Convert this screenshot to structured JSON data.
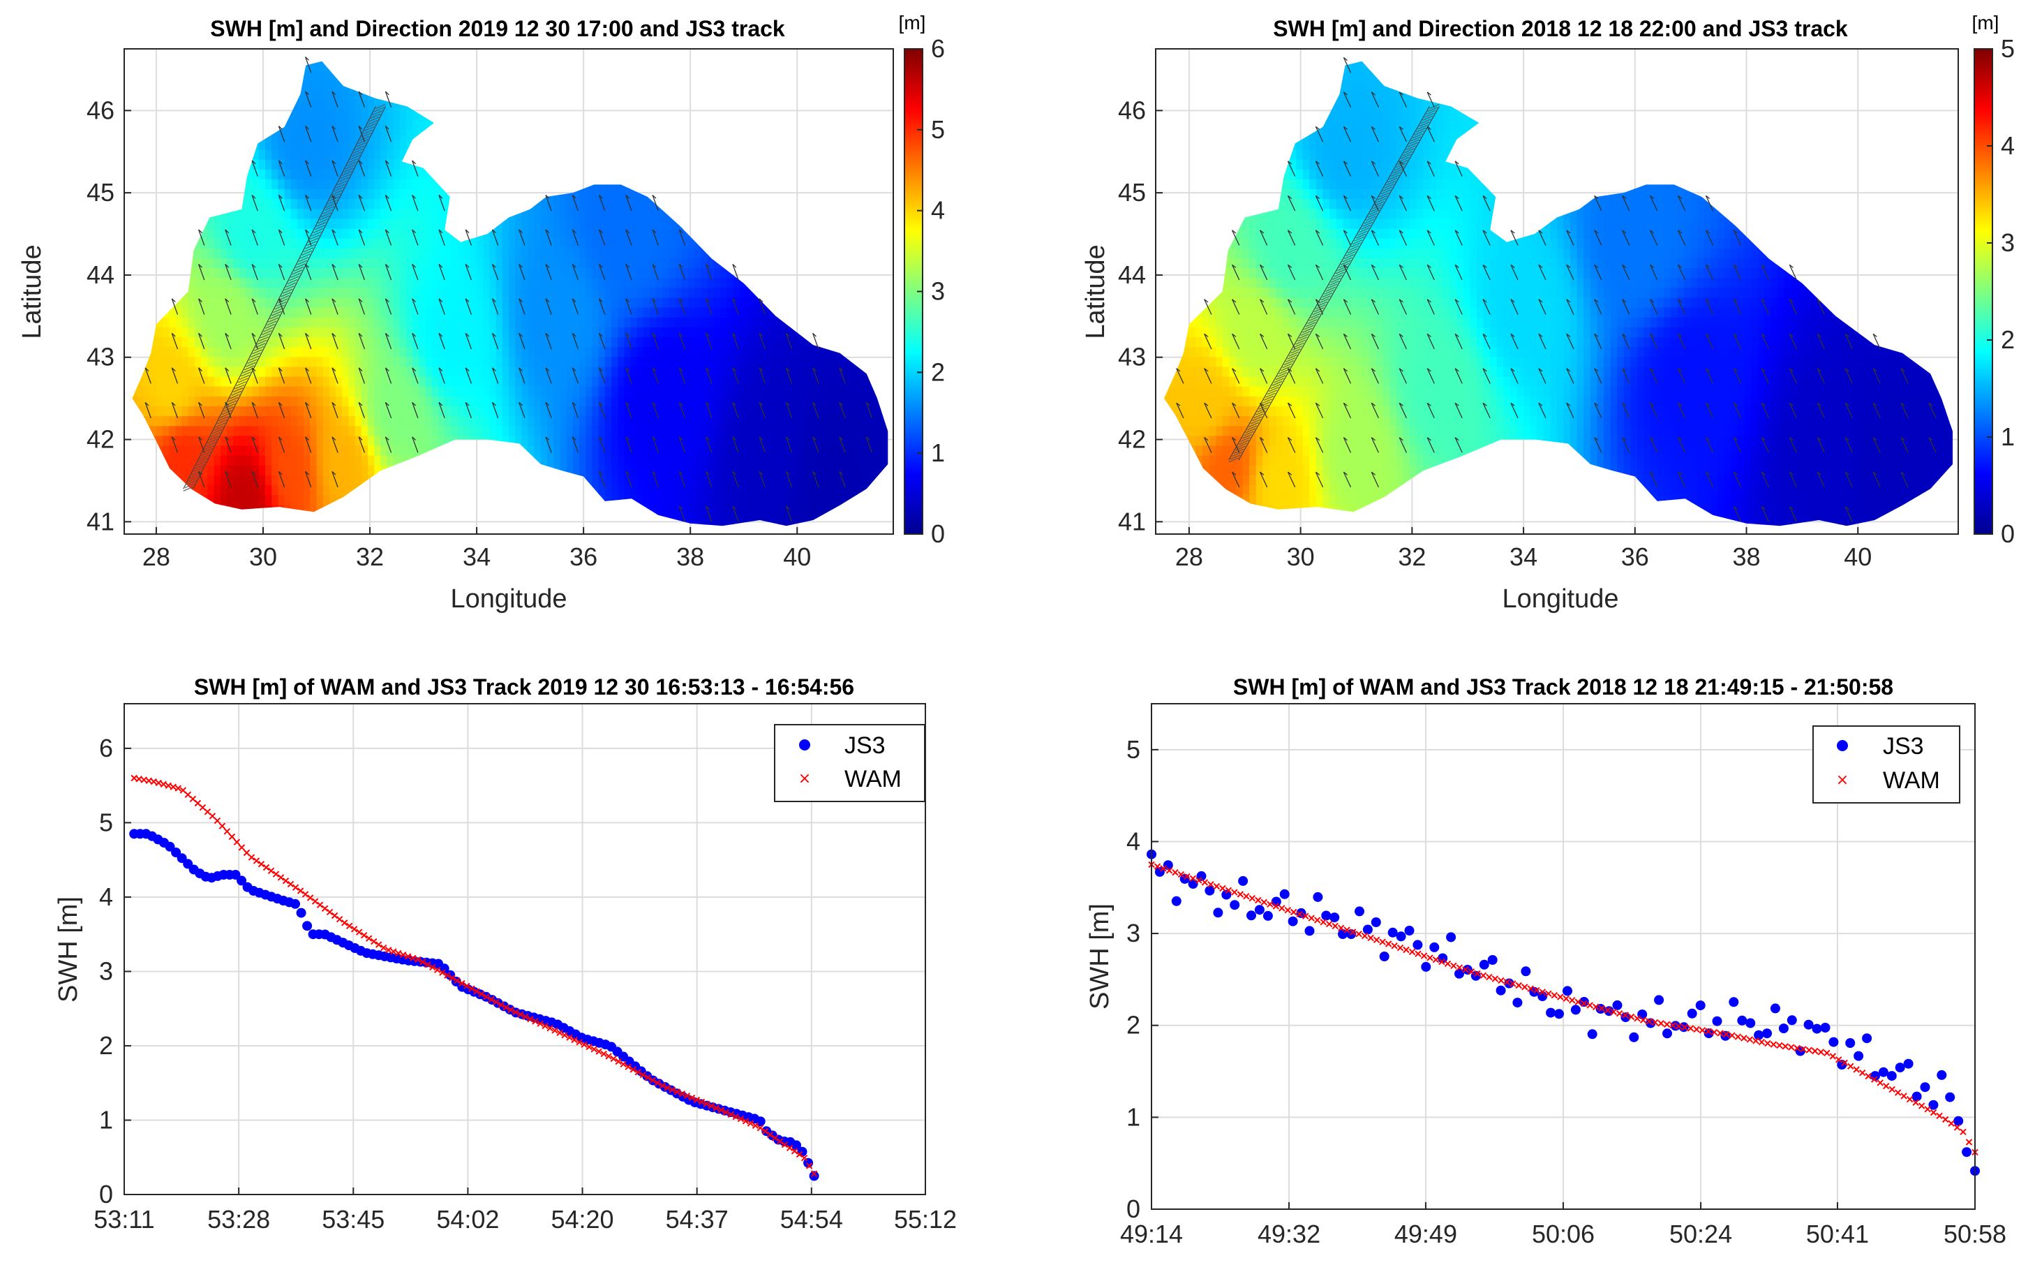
{
  "chart_data": [
    {
      "id": "map1",
      "type": "heatmap",
      "title": "SWH [m] and Direction  2019 12 30  17:00  and JS3 track",
      "xlabel": "Longitude",
      "ylabel": "Latitude",
      "xlim": [
        27.4,
        41.8
      ],
      "ylim": [
        40.85,
        46.75
      ],
      "xticks": [
        28,
        30,
        32,
        34,
        36,
        38,
        40
      ],
      "yticks": [
        41,
        42,
        43,
        44,
        45,
        46
      ],
      "colorbar": {
        "unit": "[m]",
        "min": 0,
        "max": 6,
        "ticks": [
          0,
          1,
          2,
          3,
          4,
          5,
          6
        ]
      },
      "swh_field": [
        {
          "lon": 29.7,
          "lat": 41.3,
          "value": 5.6
        },
        {
          "lon": 28.5,
          "lat": 41.8,
          "value": 5.0
        },
        {
          "lon": 30.5,
          "lat": 41.6,
          "value": 4.8
        },
        {
          "lon": 28.3,
          "lat": 42.6,
          "value": 4.0
        },
        {
          "lon": 31.5,
          "lat": 41.7,
          "value": 4.2
        },
        {
          "lon": 29.3,
          "lat": 43.5,
          "value": 3.2
        },
        {
          "lon": 32.5,
          "lat": 42.3,
          "value": 3.0
        },
        {
          "lon": 29.8,
          "lat": 44.5,
          "value": 2.4
        },
        {
          "lon": 33.5,
          "lat": 43.2,
          "value": 2.2
        },
        {
          "lon": 30.8,
          "lat": 45.6,
          "value": 1.6
        },
        {
          "lon": 35.5,
          "lat": 43.5,
          "value": 1.6
        },
        {
          "lon": 36.8,
          "lat": 44.5,
          "value": 1.4
        },
        {
          "lon": 37.5,
          "lat": 42.5,
          "value": 0.7
        },
        {
          "lon": 39.5,
          "lat": 41.8,
          "value": 0.4
        },
        {
          "lon": 40.5,
          "lat": 41.5,
          "value": 0.3
        }
      ],
      "track": {
        "start": [
          28.6,
          41.4
        ],
        "end": [
          32.2,
          46.05
        ]
      },
      "direction_deg_from_north": 200
    },
    {
      "id": "map2",
      "type": "heatmap",
      "title": "SWH [m] and Direction  2018 12 18  22:00  and JS3 track",
      "xlabel": "Longitude",
      "ylabel": "Latitude",
      "xlim": [
        27.4,
        41.8
      ],
      "ylim": [
        40.85,
        46.75
      ],
      "xticks": [
        28,
        30,
        32,
        34,
        36,
        38,
        40
      ],
      "yticks": [
        41,
        42,
        43,
        44,
        45,
        46
      ],
      "colorbar": {
        "unit": "[m]",
        "min": 0,
        "max": 5,
        "ticks": [
          0,
          1,
          2,
          3,
          4,
          5
        ]
      },
      "swh_field": [
        {
          "lon": 28.7,
          "lat": 41.7,
          "value": 3.9
        },
        {
          "lon": 28.3,
          "lat": 42.4,
          "value": 3.4
        },
        {
          "lon": 29.6,
          "lat": 41.5,
          "value": 3.3
        },
        {
          "lon": 29.2,
          "lat": 43.3,
          "value": 2.8
        },
        {
          "lon": 31.0,
          "lat": 41.8,
          "value": 2.7
        },
        {
          "lon": 29.8,
          "lat": 44.3,
          "value": 2.2
        },
        {
          "lon": 32.5,
          "lat": 42.6,
          "value": 2.2
        },
        {
          "lon": 30.8,
          "lat": 45.5,
          "value": 1.5
        },
        {
          "lon": 34.0,
          "lat": 43.6,
          "value": 1.7
        },
        {
          "lon": 36.0,
          "lat": 44.4,
          "value": 1.2
        },
        {
          "lon": 37.0,
          "lat": 42.7,
          "value": 0.7
        },
        {
          "lon": 39.5,
          "lat": 41.8,
          "value": 0.35
        },
        {
          "lon": 40.5,
          "lat": 41.6,
          "value": 0.3
        }
      ],
      "track": {
        "start": [
          28.8,
          41.75
        ],
        "end": [
          32.4,
          46.05
        ]
      },
      "direction_deg_from_north": 205
    },
    {
      "id": "line1",
      "type": "scatter",
      "title": "SWH [m] of WAM and JS3 Track 2019 12 30  16:53:13 - 16:54:56",
      "xlabel": "",
      "ylabel": "SWH [m]",
      "xlim": [
        0,
        121
      ],
      "ylim": [
        0,
        6.6
      ],
      "xticks": [
        0,
        17.3,
        34.6,
        51.9,
        69.2,
        86.5,
        103.8,
        121
      ],
      "xtick_labels": [
        "53:11",
        "53:28",
        "53:45",
        "54:02",
        "54:20",
        "54:37",
        "54:54",
        "55:12"
      ],
      "yticks": [
        0,
        1,
        2,
        3,
        4,
        5,
        6
      ],
      "legend": [
        "JS3",
        "WAM"
      ],
      "series": [
        {
          "name": "JS3",
          "x_range": [
            1.5,
            104.2
          ],
          "anchors": [
            [
              0,
              4.85
            ],
            [
              0.02,
              4.85
            ],
            [
              0.05,
              4.7
            ],
            [
              0.09,
              4.35
            ],
            [
              0.11,
              4.25
            ],
            [
              0.13,
              4.3
            ],
            [
              0.15,
              4.3
            ],
            [
              0.17,
              4.1
            ],
            [
              0.22,
              3.95
            ],
            [
              0.24,
              3.9
            ],
            [
              0.26,
              3.5
            ],
            [
              0.28,
              3.5
            ],
            [
              0.34,
              3.25
            ],
            [
              0.4,
              3.15
            ],
            [
              0.45,
              3.1
            ],
            [
              0.48,
              2.8
            ],
            [
              0.52,
              2.65
            ],
            [
              0.56,
              2.45
            ],
            [
              0.62,
              2.3
            ],
            [
              0.66,
              2.1
            ],
            [
              0.7,
              2.0
            ],
            [
              0.76,
              1.55
            ],
            [
              0.82,
              1.25
            ],
            [
              0.86,
              1.15
            ],
            [
              0.92,
              1.0
            ],
            [
              0.93,
              0.85
            ],
            [
              0.95,
              0.72
            ],
            [
              0.97,
              0.7
            ],
            [
              0.985,
              0.55
            ],
            [
              1.0,
              0.25
            ]
          ],
          "count": 115
        },
        {
          "name": "WAM",
          "x_range": [
            1.5,
            104.2
          ],
          "anchors": [
            [
              0,
              5.6
            ],
            [
              0.03,
              5.55
            ],
            [
              0.07,
              5.45
            ],
            [
              0.12,
              5.05
            ],
            [
              0.17,
              4.55
            ],
            [
              0.25,
              4.05
            ],
            [
              0.31,
              3.65
            ],
            [
              0.37,
              3.3
            ],
            [
              0.42,
              3.15
            ],
            [
              0.46,
              2.95
            ],
            [
              0.5,
              2.75
            ],
            [
              0.55,
              2.5
            ],
            [
              0.62,
              2.2
            ],
            [
              0.7,
              1.85
            ],
            [
              0.78,
              1.45
            ],
            [
              0.86,
              1.15
            ],
            [
              0.92,
              0.9
            ],
            [
              0.96,
              0.65
            ],
            [
              0.985,
              0.5
            ],
            [
              1.0,
              0.28
            ]
          ],
          "count": 140
        }
      ]
    },
    {
      "id": "line2",
      "type": "scatter",
      "title": "SWH [m] of WAM and JS3 Track 2018 12 18  21:49:15 - 21:50:58",
      "xlabel": "",
      "ylabel": "SWH [m]",
      "xlim": [
        0,
        103
      ],
      "ylim": [
        0,
        5.5
      ],
      "xticks": [
        0,
        17.2,
        34.3,
        51.5,
        68.7,
        85.8,
        103
      ],
      "xtick_labels": [
        "49:14",
        "49:32",
        "49:49",
        "50:06",
        "50:24",
        "50:41",
        "50:58"
      ],
      "yticks": [
        0,
        1,
        2,
        3,
        4,
        5
      ],
      "legend": [
        "JS3",
        "WAM"
      ],
      "series": [
        {
          "name": "JS3",
          "x_range": [
            0,
            103
          ],
          "anchors": [
            [
              0,
              3.7
            ],
            [
              0.1,
              3.35
            ],
            [
              0.2,
              3.2
            ],
            [
              0.3,
              2.95
            ],
            [
              0.4,
              2.6
            ],
            [
              0.5,
              2.2
            ],
            [
              0.6,
              2.05
            ],
            [
              0.7,
              2.05
            ],
            [
              0.8,
              1.95
            ],
            [
              0.9,
              1.5
            ],
            [
              0.97,
              1.2
            ],
            [
              1.0,
              0.5
            ]
          ],
          "count": 100,
          "scatter_amp": 0.25
        },
        {
          "name": "WAM",
          "x_range": [
            0,
            103
          ],
          "anchors": [
            [
              0,
              3.75
            ],
            [
              0.1,
              3.45
            ],
            [
              0.2,
              3.15
            ],
            [
              0.3,
              2.85
            ],
            [
              0.4,
              2.55
            ],
            [
              0.5,
              2.3
            ],
            [
              0.6,
              2.05
            ],
            [
              0.7,
              1.9
            ],
            [
              0.75,
              1.8
            ],
            [
              0.82,
              1.7
            ],
            [
              0.9,
              1.3
            ],
            [
              0.96,
              1.0
            ],
            [
              0.985,
              0.85
            ],
            [
              1.0,
              0.62
            ]
          ],
          "count": 140
        }
      ]
    }
  ]
}
